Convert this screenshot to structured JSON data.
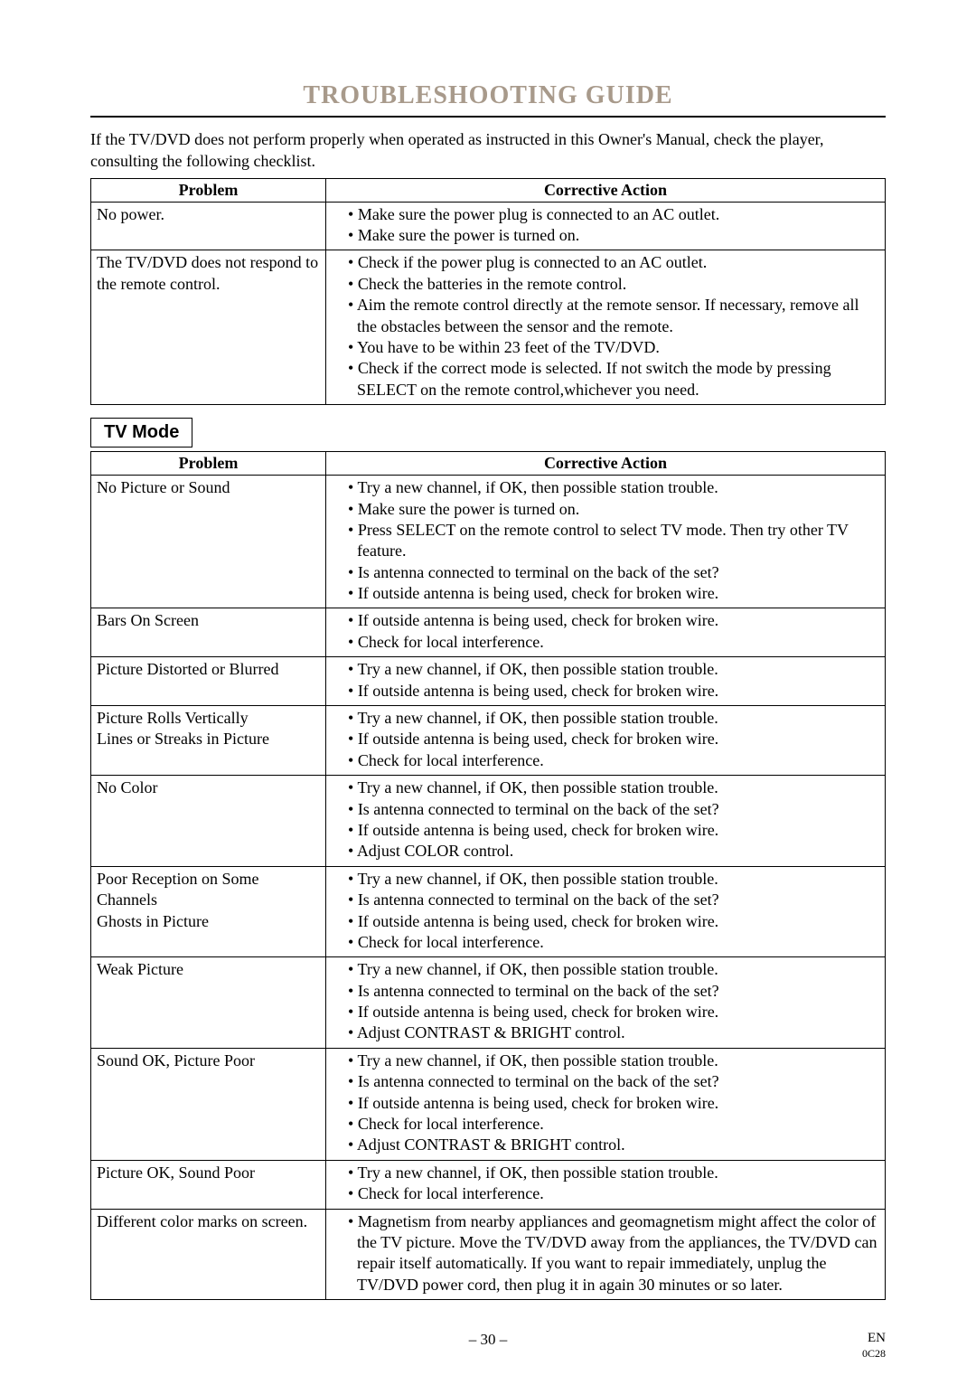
{
  "title": "TROUBLESHOOTING GUIDE",
  "intro": "If the TV/DVD does not perform properly when operated as instructed in this Owner's Manual, check the player, consulting the following checklist.",
  "headers": {
    "problem": "Problem",
    "action": "Corrective Action"
  },
  "table1": [
    {
      "problem": "No power.",
      "actions": [
        "Make sure the power plug is connected to an AC outlet.",
        "Make sure the power is turned on."
      ]
    },
    {
      "problem": "The TV/DVD does not respond to the remote control.",
      "actions": [
        "Check if the power plug is connected to an AC outlet.",
        "Check the batteries in the remote control.",
        "Aim the remote control directly at the remote sensor.  If necessary, remove all the obstacles between the sensor and the remote.",
        "You have to be within 23 feet of the TV/DVD.",
        "Check if the correct mode is selected.  If not switch the mode by pressing SELECT on the remote control,whichever you need."
      ]
    }
  ],
  "section2_label": "TV Mode",
  "table2": [
    {
      "problem": "No Picture or Sound",
      "actions": [
        "Try a new channel, if OK, then possible station trouble.",
        "Make sure the power is turned on.",
        "Press SELECT on the remote control to select TV mode.  Then try other TV feature.",
        "Is antenna connected to terminal on the back of the set?",
        "If outside antenna is being used, check for broken wire."
      ]
    },
    {
      "problem": "Bars On Screen",
      "actions": [
        "If outside antenna is being used, check for broken wire.",
        "Check for local interference."
      ]
    },
    {
      "problem": "Picture Distorted or Blurred",
      "actions": [
        "Try a new channel, if OK, then possible station trouble.",
        "If outside antenna is being used, check for broken wire."
      ]
    },
    {
      "problem": "Picture Rolls Vertically\nLines or Streaks in Picture",
      "actions": [
        "Try a new channel, if OK, then possible station trouble.",
        "If outside antenna is being used, check for broken wire.",
        "Check for local interference."
      ]
    },
    {
      "problem": "No Color",
      "actions": [
        "Try a new channel, if OK, then possible station trouble.",
        "Is antenna connected to terminal on the back of the set?",
        "If outside antenna is being used, check for broken wire.",
        "Adjust COLOR control."
      ]
    },
    {
      "problem": "Poor Reception on Some Channels\nGhosts in Picture",
      "actions": [
        "Try a new channel, if OK, then possible station trouble.",
        "Is antenna connected to terminal on the back of the set?",
        "If outside antenna is being used, check for broken wire.",
        "Check for local interference."
      ]
    },
    {
      "problem": "Weak Picture",
      "actions": [
        "Try a new channel, if OK, then possible station trouble.",
        "Is antenna connected to terminal on the back of the set?",
        "If outside antenna is being used, check for broken wire.",
        "Adjust CONTRAST & BRIGHT control."
      ]
    },
    {
      "problem": "Sound OK, Picture Poor",
      "actions": [
        "Try a new channel, if OK, then possible station trouble.",
        "Is antenna connected to terminal on the back of the set?",
        "If outside antenna is being used, check for broken wire.",
        "Check for local interference.",
        "Adjust CONTRAST & BRIGHT control."
      ]
    },
    {
      "problem": "Picture OK, Sound Poor",
      "actions": [
        "Try a new channel, if OK, then possible station trouble.",
        "Check for local interference."
      ]
    },
    {
      "problem": "Different color marks on screen.",
      "actions": [
        "Magnetism from nearby appliances and geomagnetism might affect the color of the TV picture. Move the TV/DVD away from the appliances, the TV/DVD can repair itself automatically. If you want to repair immediately, unplug the TV/DVD power cord, then plug it in again 30 minutes or so later."
      ]
    }
  ],
  "footer": {
    "page": "– 30 –",
    "lang": "EN",
    "code": "0C28"
  },
  "colors": {
    "title": "#a89a8b",
    "border": "#000000",
    "text": "#000000",
    "bg": "#ffffff"
  }
}
